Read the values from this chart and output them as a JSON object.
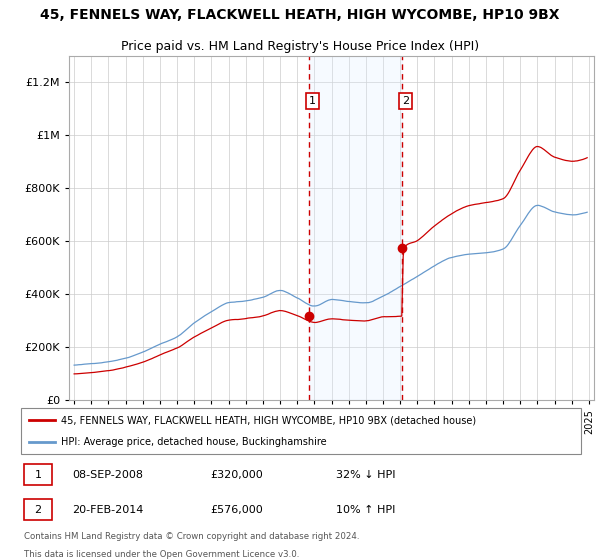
{
  "title": "45, FENNELS WAY, FLACKWELL HEATH, HIGH WYCOMBE, HP10 9BX",
  "subtitle": "Price paid vs. HM Land Registry's House Price Index (HPI)",
  "title_fontsize": 10,
  "subtitle_fontsize": 9,
  "legend_label_property": "45, FENNELS WAY, FLACKWELL HEATH, HIGH WYCOMBE, HP10 9BX (detached house)",
  "legend_label_hpi": "HPI: Average price, detached house, Buckinghamshire",
  "footer_line1": "Contains HM Land Registry data © Crown copyright and database right 2024.",
  "footer_line2": "This data is licensed under the Open Government Licence v3.0.",
  "transaction1_date": "08-SEP-2008",
  "transaction1_price": 320000,
  "transaction1_pct": "32% ↓ HPI",
  "transaction1_year": 2008.69,
  "transaction2_date": "20-FEB-2014",
  "transaction2_price": 576000,
  "transaction2_pct": "10% ↑ HPI",
  "transaction2_year": 2014.13,
  "color_property": "#cc0000",
  "color_hpi": "#6699cc",
  "color_shade": "#ddeeff",
  "ylim_min": 0,
  "ylim_max": 1300000,
  "background_color": "#ffffff",
  "grid_color": "#cccccc"
}
